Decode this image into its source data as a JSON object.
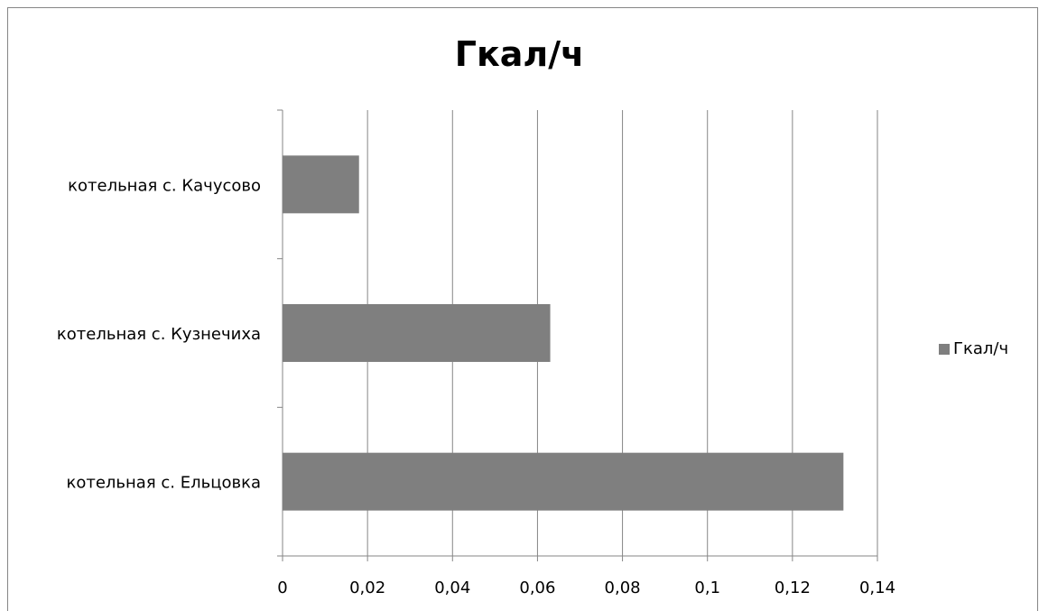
{
  "chart_data": {
    "type": "bar",
    "orientation": "horizontal",
    "title": "Гкал/ч",
    "categories": [
      "котельная с. Ельцовка",
      "котельная с. Кузнечиха",
      "котельная с. Качусово"
    ],
    "series": [
      {
        "name": "Гкал/ч",
        "values": [
          0.132,
          0.063,
          0.018
        ],
        "color": "#7f7f7f"
      }
    ],
    "xlim": [
      0,
      0.14
    ],
    "xticks": [
      "0",
      "0,02",
      "0,04",
      "0,06",
      "0,08",
      "0,1",
      "0,12",
      "0,14"
    ],
    "grid": true,
    "legend": "right"
  }
}
